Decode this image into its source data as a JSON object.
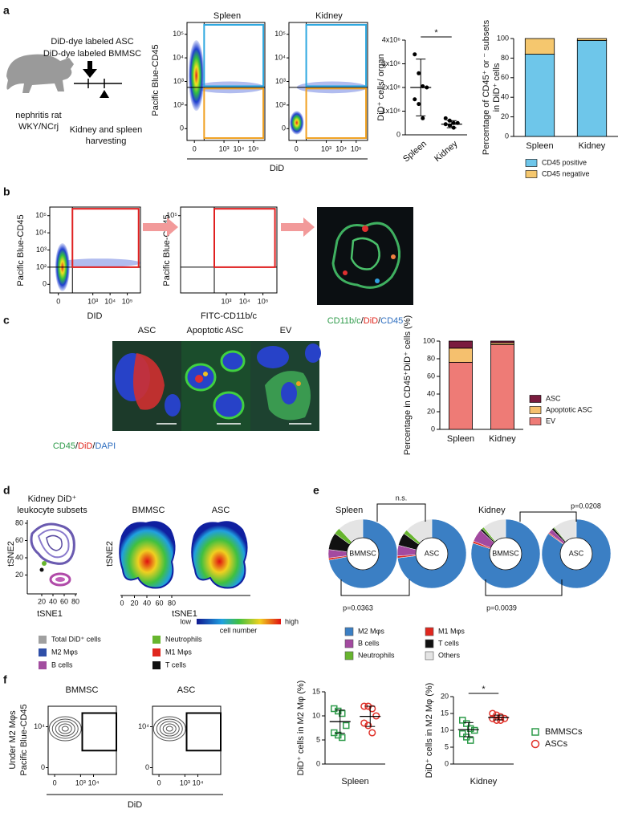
{
  "panels": {
    "a": {
      "label": "a",
      "treatment": [
        "DiD-dye labeled ASC",
        "DiD-dye labeled BMMSC"
      ],
      "animal": [
        "nephritis rat",
        "WKY/NCrj"
      ],
      "harvest": [
        "Kidney and spleen",
        "harvesting"
      ],
      "flow": {
        "titles": [
          "Spleen",
          "Kidney"
        ],
        "ylabel": "Pacific Blue-CD45",
        "xlabel": "DiD",
        "yticks": [
          {
            "value": 100000,
            "label": "10⁵"
          },
          {
            "value": 10000,
            "label": "10⁴"
          },
          {
            "value": 1000,
            "label": "10³"
          },
          {
            "value": 100,
            "label": "10²"
          },
          0
        ],
        "xticks": [
          0,
          {
            "value": 1000,
            "label": "10³"
          },
          {
            "value": 10000,
            "label": "10⁴"
          },
          {
            "value": 100000,
            "label": "10⁵"
          }
        ]
      }
    },
    "b": {
      "label": "b",
      "flow": [
        {
          "ylabel": "Pacific Blue-CD45",
          "xlabel": "DID",
          "yticks": [
            {
              "value": 100000,
              "label": "10⁵"
            },
            {
              "value": 10000,
              "label": "10⁴"
            },
            {
              "value": 1000,
              "label": "10³"
            },
            {
              "value": 100,
              "label": "10²"
            },
            0
          ],
          "xticks": [
            0,
            {
              "value": 1000,
              "label": "10³"
            },
            {
              "value": 10000,
              "label": "10⁴"
            },
            {
              "value": 100000,
              "label": "10⁵"
            }
          ]
        },
        {
          "ylabel": "Pacific Blue-CD45",
          "xlabel": "FITC-CD11b/c",
          "yticks": [
            {
              "value": 100000,
              "label": "10⁵"
            }
          ],
          "xticks": [
            {
              "value": 1000,
              "label": "10³"
            },
            {
              "value": 10000,
              "label": "10⁴"
            },
            {
              "value": 100000,
              "label": "10⁵"
            }
          ]
        }
      ],
      "stain": [
        "CD11b/c",
        "/",
        "DiD",
        "/",
        "CD45"
      ]
    },
    "c": {
      "label": "c",
      "images": [
        "ASC",
        "Apoptotic ASC",
        "EV"
      ],
      "stain": [
        "CD45",
        "/",
        "DiD",
        "/",
        "DAPI"
      ]
    },
    "d": {
      "label": "d",
      "title": [
        "Kidney DiD⁺",
        "leukocyte subsets"
      ],
      "maps": [
        "BMMSC",
        "ASC"
      ],
      "xlabel": "tSNE1",
      "ylabel": "tSNE2",
      "xticks": [
        20,
        40,
        60,
        80
      ],
      "yticks": [
        80,
        60,
        40,
        20
      ],
      "map_xticks": [
        0,
        20,
        40,
        60,
        80
      ],
      "colorbar": {
        "low": "low",
        "high": "high",
        "label": "cell number"
      },
      "legend": [
        "Total DiD⁺ cells",
        "M2 Mφs",
        "B cells",
        "Neutrophils",
        "M1 Mφs",
        "T cells"
      ],
      "legend_colors": [
        "#a0a0a0",
        "#2f4fa8",
        "#a24d9f",
        "#67b52e",
        "#e0271e",
        "#111111"
      ]
    },
    "e": {
      "label": "e"
    },
    "f": {
      "label": "f",
      "flow": {
        "titles": [
          "BMMSC",
          "ASC"
        ],
        "ylabel": [
          "Under M2 Mφs",
          "Pacific Blue-CD45"
        ],
        "xlabel": "DiD",
        "yticks": [
          {
            "value": 10000,
            "label": "10⁴"
          },
          0
        ],
        "xticks": [
          0,
          {
            "value": 1000,
            "label": "10³"
          },
          {
            "value": 10000,
            "label": "10⁴"
          }
        ]
      }
    }
  },
  "chart_data": [
    {
      "type": "dot",
      "ylabel": "DiD⁺ cells/ organ",
      "categories": [
        "Spleen",
        "Kidney"
      ],
      "color": "#000000",
      "values": [
        [
          3400000,
          2600000,
          2050000,
          2000000,
          1500000,
          1300000,
          700000
        ],
        [
          700000,
          600000,
          500000,
          500000,
          450000,
          400000,
          300000
        ]
      ],
      "means": [
        2000000,
        450000
      ],
      "sd": [
        1200000,
        150000
      ],
      "ylim": [
        0,
        4000000
      ],
      "yticks": [
        0,
        {
          "value": 1000000,
          "label": "1x10⁶"
        },
        {
          "value": 2000000,
          "label": "2x10⁶"
        },
        {
          "value": 3000000,
          "label": "3x10⁶"
        },
        {
          "value": 4000000,
          "label": "4x10⁶"
        }
      ],
      "annotation": "*"
    },
    {
      "type": "stacked_bar",
      "ylabel": [
        "Percentage of CD45⁺ or ⁻ subsets",
        "in DiD⁺ cells"
      ],
      "categories": [
        "Spleen",
        "Kidney"
      ],
      "series": [
        {
          "name": "CD45 positive",
          "color": "#6ec6ea",
          "values": [
            84,
            98
          ]
        },
        {
          "name": "CD45 negative",
          "color": "#f5c76e",
          "values": [
            16,
            2
          ]
        }
      ],
      "ylim": [
        0,
        100
      ],
      "yticks": [
        0,
        20,
        40,
        60,
        80,
        100
      ]
    },
    {
      "type": "stacked_bar",
      "ylabel": [
        "Percentage in CD45⁺DiD⁺ cells (%)"
      ],
      "categories": [
        "Spleen",
        "Kidney"
      ],
      "series": [
        {
          "name": "EV",
          "color": "#ee7b76",
          "values": [
            76,
            96
          ]
        },
        {
          "name": "Apoptotic ASC",
          "color": "#f5c06e",
          "values": [
            16,
            2
          ]
        },
        {
          "name": "ASC",
          "color": "#7a1c3e",
          "values": [
            8,
            2
          ]
        }
      ],
      "ylim": [
        0,
        100
      ],
      "yticks": [
        0,
        20,
        40,
        60,
        80,
        100
      ]
    },
    {
      "type": "donut",
      "groups": [
        "Spleen",
        "Kidney"
      ],
      "categories": [
        "M2 Mφs",
        "M1 Mφs",
        "B cells",
        "T cells",
        "Neutrophils",
        "Others"
      ],
      "colors": [
        "#3b7fc4",
        "#e0271e",
        "#a34aa0",
        "#111111",
        "#67b52e",
        "#e4e4e4"
      ],
      "series": [
        {
          "name": "BMMSC",
          "values": [
            72,
            1,
            4,
            8,
            3,
            12
          ]
        },
        {
          "name": "ASC",
          "values": [
            73,
            1,
            5,
            6,
            2,
            13
          ]
        },
        {
          "name": "BMMSC",
          "values": [
            80,
            1,
            6,
            1,
            1,
            11
          ]
        },
        {
          "name": "ASC",
          "values": [
            85,
            0.5,
            2,
            1,
            0.5,
            11
          ]
        }
      ],
      "annotations": [
        "n.s.",
        "p=0.0208",
        "p=0.0363",
        "p=0.0039"
      ]
    },
    {
      "type": "dot",
      "ylabel": "DiD⁺ cells in M2  Mφ (%)",
      "xlabel": "Spleen",
      "series": [
        {
          "color": "#2e9b4a",
          "marker": "square",
          "values": [
            11.5,
            11,
            10.5,
            8,
            6.5,
            6,
            5.5
          ],
          "mean": 8.8,
          "sd": 2.4
        },
        {
          "color": "#e0322a",
          "marker": "circle",
          "values": [
            12,
            12,
            11.5,
            10,
            8.5,
            8,
            6.5
          ],
          "mean": 9.9,
          "sd": 2.1
        }
      ],
      "ylim": [
        0,
        15
      ],
      "yticks": [
        0,
        5,
        10,
        15
      ]
    },
    {
      "type": "dot",
      "ylabel": "DiD⁺ cells in M2  Mφ (%)",
      "xlabel": "Kidney",
      "series": [
        {
          "name": "BMMSCs",
          "color": "#2e9b4a",
          "marker": "square",
          "values": [
            13,
            12,
            10.5,
            10,
            9,
            8,
            7
          ],
          "mean": 10.2,
          "sd": 2.1
        },
        {
          "name": "ASCs",
          "color": "#e0322a",
          "marker": "circle",
          "values": [
            15,
            14.5,
            14,
            13.5,
            13.5,
            13,
            13
          ],
          "mean": 13.8,
          "sd": 0.7
        }
      ],
      "ylim": [
        0,
        20
      ],
      "yticks": [
        0,
        5,
        10,
        15,
        20
      ],
      "annotation": "*"
    }
  ]
}
